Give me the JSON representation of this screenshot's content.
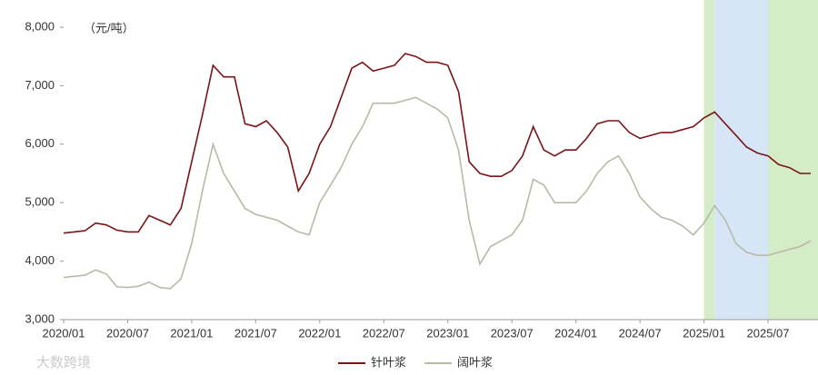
{
  "chart_data": {
    "type": "line",
    "unit_label": "（元/吨）",
    "watermark": "大数跨境",
    "x": [
      "2020/01",
      "2020/02",
      "2020/03",
      "2020/04",
      "2020/05",
      "2020/06",
      "2020/07",
      "2020/08",
      "2020/09",
      "2020/10",
      "2020/11",
      "2020/12",
      "2021/01",
      "2021/02",
      "2021/03",
      "2021/04",
      "2021/05",
      "2021/06",
      "2021/07",
      "2021/08",
      "2021/09",
      "2021/10",
      "2021/11",
      "2021/12",
      "2022/01",
      "2022/02",
      "2022/03",
      "2022/04",
      "2022/05",
      "2022/06",
      "2022/07",
      "2022/08",
      "2022/09",
      "2022/10",
      "2022/11",
      "2022/12",
      "2023/01",
      "2023/02",
      "2023/03",
      "2023/04",
      "2023/05",
      "2023/06",
      "2023/07",
      "2023/08",
      "2023/09",
      "2023/10",
      "2023/11",
      "2023/12",
      "2024/01",
      "2024/02",
      "2024/03",
      "2024/04",
      "2024/05",
      "2024/06",
      "2024/07",
      "2024/08",
      "2024/09",
      "2024/10",
      "2024/11",
      "2024/12",
      "2025/01",
      "2025/02",
      "2025/03",
      "2025/04",
      "2025/05",
      "2025/06",
      "2025/07",
      "2025/08",
      "2025/09",
      "2025/10",
      "2025/11"
    ],
    "xlim": [
      "2020/01",
      "2025/11"
    ],
    "xticks": [
      "2020/01",
      "2020/07",
      "2021/01",
      "2021/07",
      "2022/01",
      "2022/07",
      "2023/01",
      "2023/07",
      "2024/01",
      "2024/07",
      "2025/01",
      "2025/07"
    ],
    "ylim": [
      3000,
      8000
    ],
    "yticks": [
      {
        "value": 3000,
        "label": "3,000"
      },
      {
        "value": 4000,
        "label": "4,000"
      },
      {
        "value": 5000,
        "label": "5,000"
      },
      {
        "value": 6000,
        "label": "6,000"
      },
      {
        "value": 7000,
        "label": "7,000"
      },
      {
        "value": 8000,
        "label": "8,000"
      }
    ],
    "bands": [
      {
        "from": "2025/01",
        "to": "2025/02",
        "color": "#d4ecc8"
      },
      {
        "from": "2025/02",
        "to": "2025/07",
        "color": "#d6e6f6"
      },
      {
        "from": "2025/07",
        "to": "2025/11",
        "color": "#d4ecc8"
      }
    ],
    "series": [
      {
        "name": "针叶浆",
        "color": "#7b1416",
        "values": [
          4480,
          4500,
          4520,
          4650,
          4620,
          4530,
          4500,
          4500,
          4780,
          4700,
          4620,
          4900,
          5700,
          6500,
          7350,
          7150,
          7150,
          6350,
          6300,
          6400,
          6200,
          5950,
          5200,
          5500,
          6000,
          6300,
          6800,
          7300,
          7400,
          7250,
          7300,
          7350,
          7550,
          7500,
          7400,
          7400,
          7350,
          6900,
          5700,
          5500,
          5450,
          5450,
          5550,
          5800,
          6300,
          5900,
          5800,
          5900,
          5900,
          6100,
          6350,
          6400,
          6400,
          6200,
          6100,
          6150,
          6200,
          6200,
          6250,
          6300,
          6450,
          6550,
          6350,
          6150,
          5950,
          5850,
          5800,
          5650,
          5600,
          5500,
          5500
        ]
      },
      {
        "name": "阔叶浆",
        "color": "#b9b9a9",
        "values": [
          3720,
          3740,
          3760,
          3850,
          3780,
          3560,
          3550,
          3570,
          3640,
          3550,
          3530,
          3700,
          4300,
          5200,
          6000,
          5500,
          5200,
          4900,
          4800,
          4750,
          4700,
          4600,
          4500,
          4450,
          5000,
          5300,
          5600,
          6000,
          6300,
          6700,
          6700,
          6700,
          6750,
          6800,
          6700,
          6600,
          6450,
          5900,
          4700,
          3950,
          4250,
          4350,
          4450,
          4700,
          5400,
          5300,
          5000,
          5000,
          5000,
          5200,
          5500,
          5700,
          5800,
          5500,
          5100,
          4900,
          4750,
          4700,
          4600,
          4450,
          4650,
          4950,
          4700,
          4300,
          4150,
          4100,
          4100,
          4150,
          4200,
          4250,
          4350
        ]
      }
    ]
  }
}
